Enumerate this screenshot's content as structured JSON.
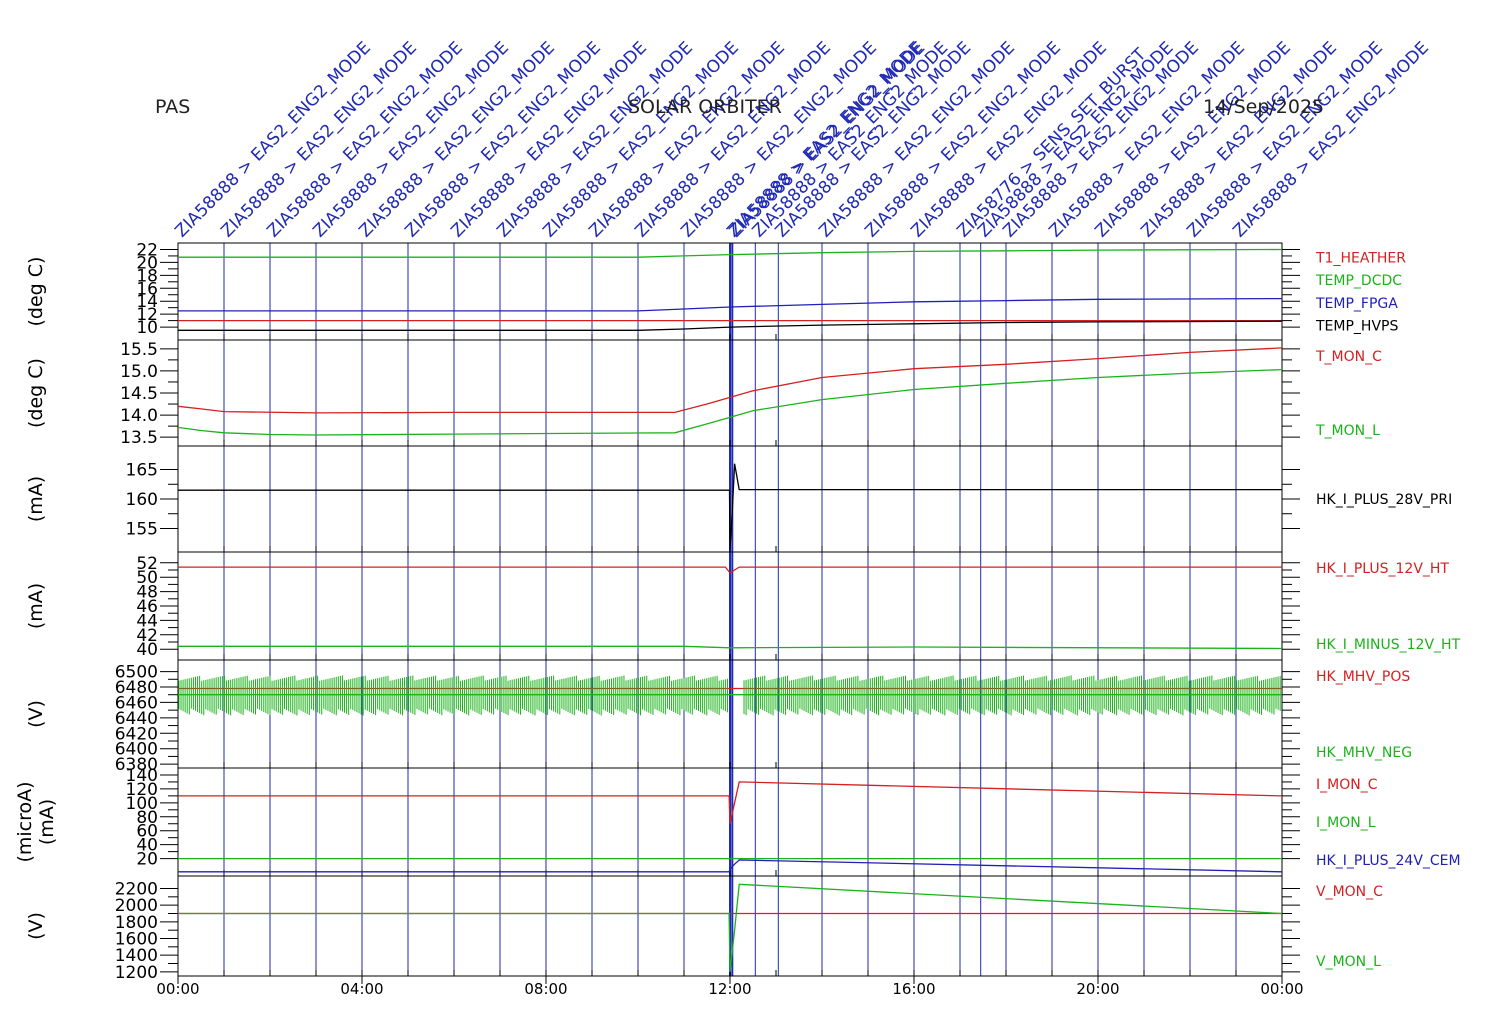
{
  "header": {
    "instrument": "PAS",
    "mission": "SOLAR ORBITER",
    "date": "14/Sep/2025"
  },
  "event_markers": {
    "color": "#1f2ab5",
    "common_label": "ZIA58888 > EAS2_ENG2_MODE",
    "special_labels": [
      "ZIA58776 > SENS_SET_BURST"
    ]
  },
  "chart_data": [
    {
      "type": "line",
      "ylabel": "(deg C)",
      "ylim": [
        8,
        23
      ],
      "yticks": [
        10,
        12,
        14,
        16,
        18,
        20,
        22
      ],
      "ytick_labels": [
        "10",
        "12",
        "14",
        "16",
        "18",
        "20",
        "22"
      ],
      "series": [
        {
          "name": "T1_HEATHER",
          "color": "#d42020",
          "x": [
            0,
            24
          ],
          "y": [
            11,
            11
          ]
        },
        {
          "name": "TEMP_DCDC",
          "color": "#1bb31b",
          "x": [
            0,
            10,
            11,
            12,
            14,
            16,
            18,
            20,
            24
          ],
          "y": [
            20.8,
            20.8,
            21.0,
            21.2,
            21.5,
            21.7,
            21.8,
            21.9,
            22.0
          ]
        },
        {
          "name": "TEMP_FPGA",
          "color": "#2020b8",
          "x": [
            0,
            10,
            11,
            12,
            14,
            16,
            18,
            20,
            24
          ],
          "y": [
            12.5,
            12.5,
            12.8,
            13.1,
            13.5,
            13.9,
            14.1,
            14.3,
            14.4
          ]
        },
        {
          "name": "TEMP_HVPS",
          "color": "#000000",
          "x": [
            0,
            10,
            11,
            12,
            14,
            16,
            18,
            20,
            24
          ],
          "y": [
            9.5,
            9.5,
            9.7,
            10.0,
            10.3,
            10.5,
            10.7,
            10.8,
            10.9
          ]
        }
      ]
    },
    {
      "type": "line",
      "ylabel": "(deg C)",
      "ylim": [
        13.3,
        15.7
      ],
      "yticks": [
        13.5,
        14.0,
        14.5,
        15.0,
        15.5
      ],
      "ytick_labels": [
        "13.5",
        "14.0",
        "14.5",
        "15.0",
        "15.5"
      ],
      "series": [
        {
          "name": "T_MON_C",
          "color": "#d42020",
          "x": [
            0,
            0.5,
            1,
            3,
            6,
            10.8,
            11.5,
            12.5,
            14,
            16,
            18,
            20,
            22,
            24
          ],
          "y": [
            14.2,
            14.14,
            14.08,
            14.05,
            14.06,
            14.06,
            14.25,
            14.55,
            14.85,
            15.05,
            15.15,
            15.28,
            15.42,
            15.52
          ]
        },
        {
          "name": "T_MON_L",
          "color": "#1bb31b",
          "x": [
            0,
            0.5,
            1,
            2,
            3,
            6,
            10.8,
            11.5,
            12.5,
            14,
            16,
            18,
            20,
            22,
            24
          ],
          "y": [
            13.72,
            13.65,
            13.6,
            13.56,
            13.55,
            13.57,
            13.6,
            13.8,
            14.1,
            14.35,
            14.58,
            14.72,
            14.85,
            14.95,
            15.03
          ]
        }
      ]
    },
    {
      "type": "line",
      "ylabel": "(mA)",
      "ylim": [
        151,
        169
      ],
      "yticks": [
        155,
        160,
        165
      ],
      "ytick_labels": [
        "155",
        "160",
        "165"
      ],
      "series": [
        {
          "name": "HK_I_PLUS_28V_PRI",
          "color": "#000000",
          "x": [
            0,
            11.99,
            12.0,
            12.05,
            12.1,
            12.2,
            24
          ],
          "y": [
            161.5,
            161.5,
            151.5,
            158,
            166,
            161.6,
            161.6
          ]
        }
      ]
    },
    {
      "type": "line",
      "ylabel": "(mA)",
      "ylim": [
        38.5,
        53.5
      ],
      "yticks": [
        40,
        42,
        44,
        46,
        48,
        50,
        52
      ],
      "ytick_labels": [
        "40",
        "42",
        "44",
        "46",
        "48",
        "50",
        "52"
      ],
      "series": [
        {
          "name": "HK_I_PLUS_12V_HT",
          "color": "#d42020",
          "x": [
            0,
            11.9,
            12.0,
            12.1,
            12.2,
            24
          ],
          "y": [
            51.4,
            51.4,
            50.6,
            51.0,
            51.4,
            51.4
          ]
        },
        {
          "name": "HK_I_MINUS_12V_HT",
          "color": "#1bb31b",
          "x": [
            0,
            11.0,
            12.0,
            16.0,
            24
          ],
          "y": [
            40.4,
            40.4,
            40.2,
            40.3,
            40.1
          ]
        }
      ]
    },
    {
      "type": "line",
      "ylabel": "(V)",
      "ylim": [
        6375,
        6515
      ],
      "yticks": [
        6380,
        6400,
        6420,
        6440,
        6460,
        6480,
        6500
      ],
      "ytick_labels": [
        "6380",
        "6400",
        "6420",
        "6440",
        "6460",
        "6480",
        "6500"
      ],
      "series": [
        {
          "name": "HK_MHV_POS",
          "color": "#d42020",
          "x": [
            0,
            24
          ],
          "y": [
            6478,
            6478
          ]
        },
        {
          "name": "HK_MHV_NEG",
          "color": "#1bb31b",
          "x": [
            0,
            24
          ],
          "y": [
            6470,
            6470
          ]
        }
      ]
    },
    {
      "type": "line",
      "ylabel": "(microA)\n(mA)",
      "ylim": [
        -5,
        150
      ],
      "yticks": [
        20,
        40,
        60,
        80,
        100,
        120,
        140
      ],
      "ytick_labels": [
        "20",
        "40",
        "60",
        "80",
        "100",
        "120",
        "140"
      ],
      "series": [
        {
          "name": "I_MON_C",
          "color": "#d42020",
          "x": [
            0,
            11.98,
            12.0,
            12.1,
            12.2,
            24
          ],
          "y": [
            110,
            110,
            70,
            100,
            130,
            110
          ]
        },
        {
          "name": "I_MON_L",
          "color": "#1bb31b",
          "x": [
            0,
            24
          ],
          "y": [
            20,
            20
          ]
        },
        {
          "name": "HK_I_PLUS_24V_CEM",
          "color": "#2020b8",
          "x": [
            0,
            11.98,
            12.0,
            12.1,
            12.2,
            24
          ],
          "y": [
            1,
            1,
            5,
            12,
            18,
            1
          ]
        }
      ]
    },
    {
      "type": "line",
      "ylabel": "(V)",
      "ylim": [
        1150,
        2350
      ],
      "yticks": [
        1200,
        1400,
        1600,
        1800,
        2000,
        2200
      ],
      "ytick_labels": [
        "1200",
        "1400",
        "1600",
        "1800",
        "2000",
        "2200"
      ],
      "series": [
        {
          "name": "V_MON_C",
          "color": "#d42020",
          "x": [
            0,
            24
          ],
          "y": [
            1900,
            1900
          ]
        },
        {
          "name": "V_MON_L",
          "color": "#1bb31b",
          "x": [
            0,
            11.98,
            12.0,
            12.1,
            12.2,
            24
          ],
          "y": [
            1900,
            1900,
            1200,
            1700,
            2250,
            1900
          ]
        }
      ]
    }
  ],
  "x_axis": {
    "xlim": [
      0,
      24
    ],
    "ticks": [
      0,
      4,
      8,
      12,
      16,
      20,
      24
    ],
    "tick_labels": [
      "00:00",
      "04:00",
      "08:00",
      "12:00",
      "16:00",
      "20:00",
      "00:00"
    ]
  }
}
